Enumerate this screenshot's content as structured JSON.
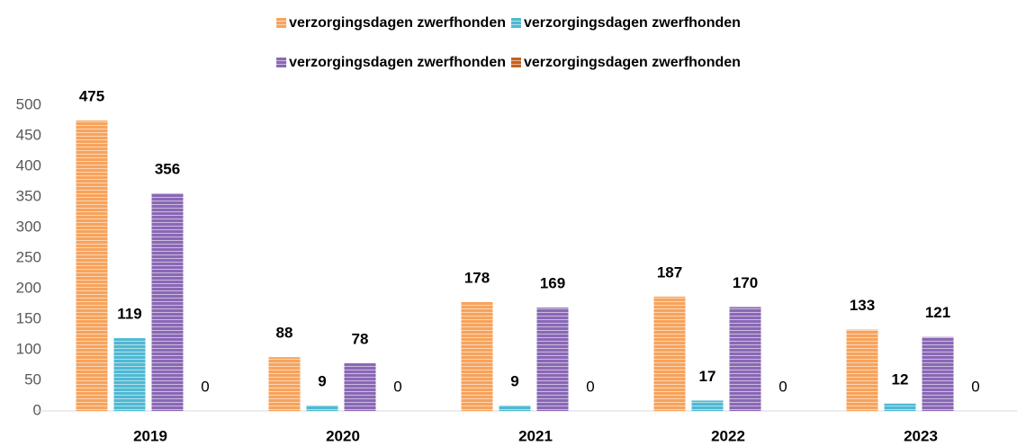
{
  "chart_data": {
    "type": "bar",
    "categories": [
      "2019",
      "2020",
      "2021",
      "2022",
      "2023"
    ],
    "series": [
      {
        "name": "verzorgingsdagen zwerfhonden",
        "color": "#f7a35c",
        "values": [
          475,
          88,
          178,
          187,
          133
        ]
      },
      {
        "name": "verzorgingsdagen zwerfhonden",
        "color": "#4fb9d3",
        "values": [
          119,
          9,
          9,
          17,
          12
        ]
      },
      {
        "name": "verzorgingsdagen zwerfhonden",
        "color": "#8a68b5",
        "values": [
          356,
          78,
          169,
          170,
          121
        ]
      },
      {
        "name": "verzorgingsdagen zwerfhonden",
        "color": "#c5641f",
        "values": [
          0,
          0,
          0,
          0,
          0
        ]
      }
    ],
    "ylim": [
      0,
      500
    ],
    "yticks": [
      0,
      50,
      100,
      150,
      200,
      250,
      300,
      350,
      400,
      450,
      500
    ],
    "grid": false,
    "legend": "top"
  }
}
